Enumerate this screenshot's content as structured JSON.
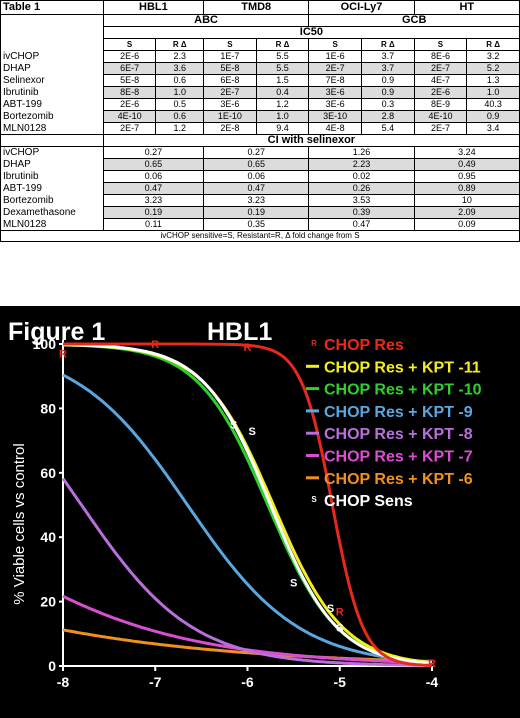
{
  "table": {
    "title": "Table 1",
    "cell_lines": [
      "HBL1",
      "TMD8",
      "OCI-Ly7",
      "HT"
    ],
    "groups": [
      "ABC",
      "GCB"
    ],
    "ic50_header": "IC50",
    "sub_headers": {
      "s": "S",
      "r": "R Δ"
    },
    "ic50_rows": [
      {
        "drug": "ivCHOP",
        "values": [
          "2E-6",
          "2.3",
          "1E-7",
          "5.5",
          "1E-6",
          "3.7",
          "8E-6",
          "3.2"
        ]
      },
      {
        "drug": "DHAP",
        "values": [
          "6E-7",
          "3.6",
          "5E-8",
          "5.5",
          "2E-7",
          "3.7",
          "2E-7",
          "5.2"
        ]
      },
      {
        "drug": "Selinexor",
        "values": [
          "5E-8",
          "0.6",
          "6E-8",
          "1.5",
          "7E-8",
          "0.9",
          "4E-7",
          "1.3"
        ]
      },
      {
        "drug": "Ibrutinib",
        "values": [
          "8E-8",
          "1.0",
          "2E-7",
          "0.4",
          "3E-6",
          "0.9",
          "2E-6",
          "1.0"
        ]
      },
      {
        "drug": "ABT-199",
        "values": [
          "2E-6",
          "0.5",
          "3E-6",
          "1.2",
          "3E-6",
          "0.3",
          "8E-9",
          "40.3"
        ]
      },
      {
        "drug": "Bortezomib",
        "values": [
          "4E-10",
          "0.6",
          "1E-10",
          "1.0",
          "3E-10",
          "2.8",
          "4E-10",
          "0.9"
        ]
      },
      {
        "drug": "MLN0128",
        "values": [
          "2E-7",
          "1.2",
          "2E-8",
          "9.4",
          "4E-8",
          "5.4",
          "2E-7",
          "3.4"
        ]
      }
    ],
    "ci_header": "CI with selinexor",
    "ci_rows": [
      {
        "drug": "ivCHOP",
        "values": [
          "0.27",
          "0.27",
          "1.26",
          "3.24"
        ]
      },
      {
        "drug": "DHAP",
        "values": [
          "0.65",
          "0.65",
          "2.23",
          "0.49"
        ]
      },
      {
        "drug": "Ibrutinib",
        "values": [
          "0.06",
          "0.06",
          "0.02",
          "0.95"
        ]
      },
      {
        "drug": "ABT-199",
        "values": [
          "0.47",
          "0.47",
          "0.26",
          "0.89"
        ]
      },
      {
        "drug": "Bortezomib",
        "values": [
          "3.23",
          "3.23",
          "3.53",
          "10"
        ]
      },
      {
        "drug": "Dexamethasone",
        "values": [
          "0.19",
          "0.19",
          "0.39",
          "2.09"
        ]
      },
      {
        "drug": "MLN0128",
        "values": [
          "0.11",
          "0.35",
          "0.47",
          "0.09"
        ]
      }
    ],
    "footnote": "ivCHOP sensitive=S, Resistant=R, Δ fold change from S"
  },
  "figure": {
    "title": "Figure 1",
    "cell_line": "HBL1"
  },
  "chart_data": {
    "type": "line",
    "title": "",
    "xlabel": "",
    "ylabel": "% Viable cells vs control",
    "xlim": [
      -8,
      -4
    ],
    "ylim": [
      0,
      100
    ],
    "x_ticks": [
      -8,
      -7,
      -6,
      -5,
      -4
    ],
    "y_ticks": [
      0,
      20,
      40,
      60,
      80,
      100
    ],
    "grid": false,
    "legend_position": "top-right",
    "series": [
      {
        "name": "CHOP Res",
        "color": "#e8291a",
        "marker": "R",
        "ic50": -5.08,
        "hill": 2.6,
        "top": 100,
        "bottom": 0,
        "points": [
          {
            "x": -8,
            "y": 97
          },
          {
            "x": -7,
            "y": 100
          },
          {
            "x": -6,
            "y": 99
          },
          {
            "x": -5,
            "y": 17
          },
          {
            "x": -4,
            "y": 1
          }
        ]
      },
      {
        "name": "CHOP Res + KPT -11",
        "color": "#f2ef1c",
        "ic50": -5.72,
        "hill": 1.15,
        "top": 100,
        "bottom": 0
      },
      {
        "name": "CHOP Res + KPT -10",
        "color": "#2ed12a",
        "ic50": -5.78,
        "hill": 1.15,
        "top": 100,
        "bottom": 0
      },
      {
        "name": "CHOP Res + KPT -9",
        "color": "#5aa7e0",
        "ic50": -6.65,
        "hill": 0.72,
        "top": 100,
        "bottom": 0
      },
      {
        "name": "CHOP Res + KPT -8",
        "color": "#b86fdb",
        "ic50": -7.8,
        "hill": 0.72,
        "top": 100,
        "bottom": 0
      },
      {
        "name": "CHOP Res + KPT -7",
        "color": "#d94fd1",
        "ic50": -9.55,
        "hill": 0.36,
        "top": 100,
        "bottom": 0
      },
      {
        "name": "CHOP Res + KPT -6",
        "color": "#f0901e",
        "ic50": -11.82,
        "hill": 0.235,
        "top": 100,
        "bottom": 0
      },
      {
        "name": "CHOP Sens",
        "color": "#ffffff",
        "marker": "S",
        "ic50": -5.75,
        "hill": 1.2,
        "top": 100,
        "bottom": 0,
        "points": [
          {
            "x": -6.15,
            "y": 75
          },
          {
            "x": -5.95,
            "y": 73
          },
          {
            "x": -5.5,
            "y": 26
          },
          {
            "x": -5.1,
            "y": 18
          },
          {
            "x": -5.0,
            "y": 12
          }
        ]
      }
    ]
  }
}
